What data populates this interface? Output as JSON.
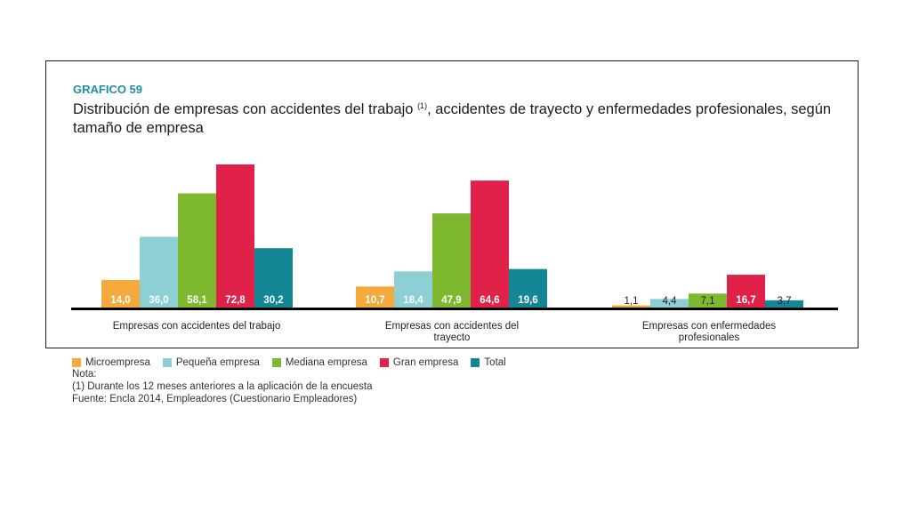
{
  "figure": {
    "label": "GRAFICO 59",
    "title_part1": "Distribución de empresas con accidentes del trabajo",
    "title_sup": "(1)",
    "title_part2": ", accidentes de trayecto y enfermedades profesionales, según tamaño de empresa"
  },
  "notes": {
    "heading": "Nota:",
    "note1": "(1) Durante los 12 meses anteriores a la aplicación de la encuesta",
    "source": "Fuente: Encla 2014, Empleadores (Cuestionario Empleadores)"
  },
  "chart_data": {
    "type": "bar",
    "categories": [
      [
        "Empresas con accidentes del trabajo"
      ],
      [
        "Empresas con accidentes del",
        "trayecto"
      ],
      [
        "Empresas con enfermedades",
        "profesionales"
      ]
    ],
    "series": [
      {
        "name": "Microempresa",
        "color": "#f4a93d",
        "values": [
          14.0,
          10.7,
          1.1
        ],
        "labels": [
          "14,0",
          "10,7",
          "1,1"
        ]
      },
      {
        "name": "Pequeña empresa",
        "color": "#8ccfd4",
        "values": [
          36.0,
          18.4,
          4.4
        ],
        "labels": [
          "36,0",
          "18,4",
          "4,4"
        ]
      },
      {
        "name": "Mediana empresa",
        "color": "#7db82f",
        "values": [
          58.1,
          47.9,
          7.1
        ],
        "labels": [
          "58,1",
          "47,9",
          "7,1"
        ]
      },
      {
        "name": "Gran empresa",
        "color": "#e0224b",
        "values": [
          72.8,
          64.6,
          16.7
        ],
        "labels": [
          "72,8",
          "64,6",
          "16,7"
        ]
      },
      {
        "name": "Total",
        "color": "#138795",
        "values": [
          30.2,
          19.6,
          3.7
        ],
        "labels": [
          "30,2",
          "19,6",
          "3,7"
        ]
      }
    ],
    "ylim": [
      0,
      100
    ],
    "grid": false,
    "legend": "bottom-left"
  }
}
